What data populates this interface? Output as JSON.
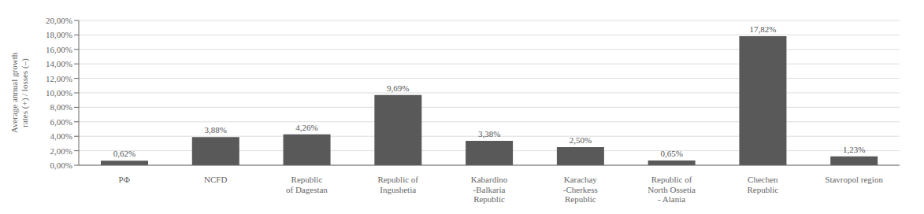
{
  "chart_data": {
    "type": "bar",
    "categories": [
      "РФ",
      "NCFD",
      "Republic\nof Dagestan",
      "Republic of\nIngushetia",
      "Kabardino\n-Balkaria\nRepublic",
      "Karachay\n-Cherkess\nRepublic",
      "Republic of\nNorth Ossetia\n- Alania",
      "Chechen\nRepublic",
      "Stavropol region"
    ],
    "values": [
      0.62,
      3.88,
      4.26,
      9.69,
      3.38,
      2.5,
      0.65,
      17.82,
      1.23
    ],
    "value_labels": [
      "0,62%",
      "3,88%",
      "4,26%",
      "9,69%",
      "3,38%",
      "2,50%",
      "0,65%",
      "17,82%",
      "1,23%"
    ],
    "color": "#595959",
    "ylabel": "Average annual growth\nrates (+) / losses (–)",
    "ylim": [
      0,
      20.0
    ],
    "yticks": [
      {
        "value": 0,
        "label": "0,00%"
      },
      {
        "value": 2,
        "label": "2,00%"
      },
      {
        "value": 4,
        "label": "4,00%"
      },
      {
        "value": 6,
        "label": "6,00%"
      },
      {
        "value": 8,
        "label": "8,00%"
      },
      {
        "value": 10,
        "label": "10,00%"
      },
      {
        "value": 12,
        "label": "12,00%"
      },
      {
        "value": 14,
        "label": "14,00%"
      },
      {
        "value": 16,
        "label": "16,00%"
      },
      {
        "value": 18,
        "label": "18,00%"
      },
      {
        "value": 20,
        "label": "20,00%"
      }
    ],
    "grid": true,
    "data_labels": true
  }
}
